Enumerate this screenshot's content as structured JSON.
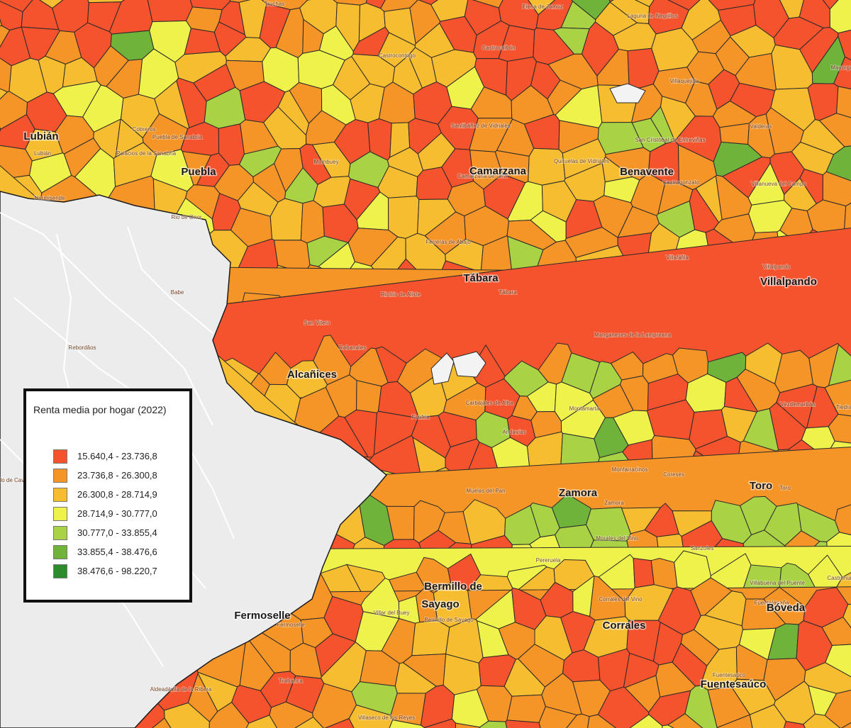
{
  "legend": {
    "title": "Renta media por hogar (2022)",
    "classes": [
      {
        "label": "15.640,4 - 23.736,8",
        "color": "#f4532d"
      },
      {
        "label": "23.736,8 - 26.300,8",
        "color": "#f59427"
      },
      {
        "label": "26.300,8 - 28.714,9",
        "color": "#f7bd30"
      },
      {
        "label": "28.714,9 - 30.777,0",
        "color": "#eef24a"
      },
      {
        "label": "30.777,0 - 33.855,4",
        "color": "#a9d245"
      },
      {
        "label": "33.855,4 - 38.476,6",
        "color": "#6fb33b"
      },
      {
        "label": "38.476,6 - 98.220,7",
        "color": "#2e8b2b"
      }
    ]
  },
  "nodata_color": "#f3f3f3",
  "background_color": "#ececec",
  "major_labels": [
    "Lubián",
    "Puebla",
    "Camarzana",
    "Benavente",
    "Tábara",
    "Villalpando",
    "Alcañices",
    "Zamora",
    "Toro",
    "Bermillo de",
    "Sayago",
    "Fermoselle",
    "Corrales",
    "Bóveda",
    "Fuentesaúco"
  ],
  "minor_labels": [
    "Lubián",
    "Hermisende",
    "Cobreros",
    "Puebla de Sanabria",
    "Palacios de la Sanabria",
    "Rio de Onor",
    "Mombuey",
    "Castrocontrigo",
    "Castrocalbón",
    "Santibáñez de Vidriales",
    "Camarzana de Tera",
    "Quiruelas de Vidriales",
    "San Cristóbal de Entreviñas",
    "Castrogonzalo",
    "Villaquejida",
    "Laguna de Negrillos",
    "Elena de Jamuz",
    "Truchas",
    "Valderas",
    "Villanueva del Campo",
    "Villalpando",
    "Villafáfila",
    "Ferreras de Abajo",
    "Tábara",
    "Riofrío de Aliste",
    "San Vitero",
    "Rabanales",
    "Manganeses de la Lampreana",
    "Babe",
    "Rebordãos",
    "Carbajales de Alba",
    "Fonfría",
    "Montamarta",
    "Vezdemarbán",
    "Andavías",
    "Monfarracinos",
    "Coreses",
    "Muelas del Pan",
    "Zamora",
    "Toro",
    "Morales del Vino",
    "Pereruela",
    "Bermillo de Sayago",
    "Sanzoles",
    "Villabuena del Puente",
    "Fuentelapeña",
    "Corrales del Vino",
    "Villar del Buey",
    "Fermoselle",
    "Trabanca",
    "Aldeadávila de la Ribera",
    "Villaseco de los Reyes",
    "Fuentesaúco",
    "Macedo de Cavaleiros",
    "Mayorga",
    "Tiedra",
    "Castronuño"
  ]
}
